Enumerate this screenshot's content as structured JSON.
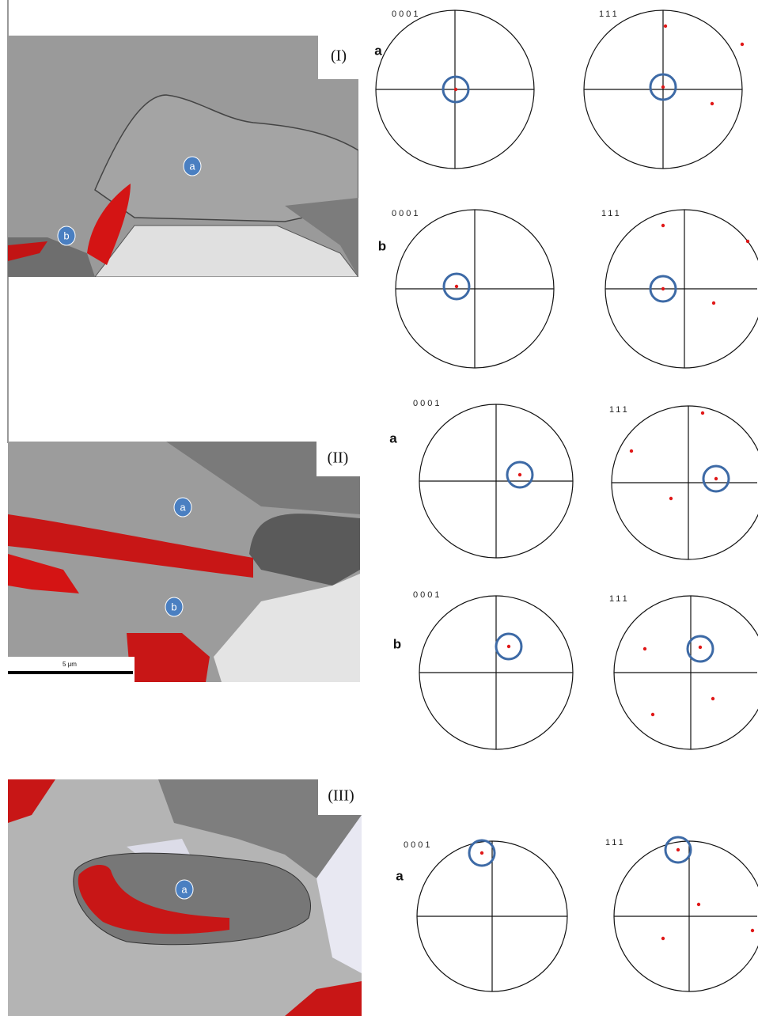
{
  "panels": [
    {
      "label": "(I)",
      "grains": [
        "a",
        "b"
      ],
      "pole_figures": [
        {
          "grain": "a",
          "plots": [
            {
              "title": "0001"
            },
            {
              "title": "111"
            }
          ]
        },
        {
          "grain": "b",
          "plots": [
            {
              "title": "0001"
            },
            {
              "title": "111"
            }
          ]
        }
      ]
    },
    {
      "label": "(II)",
      "scale_bar": "5 μm",
      "grains": [
        "a",
        "b"
      ],
      "pole_figures": [
        {
          "grain": "a",
          "plots": [
            {
              "title": "0001"
            },
            {
              "title": "111"
            }
          ]
        },
        {
          "grain": "b",
          "plots": [
            {
              "title": "0001"
            },
            {
              "title": "111"
            }
          ]
        }
      ]
    },
    {
      "label": "(III)",
      "grains": [
        "a"
      ],
      "pole_figures": [
        {
          "grain": "a",
          "plots": [
            {
              "title": "0001"
            },
            {
              "title": "111"
            }
          ]
        }
      ]
    }
  ]
}
